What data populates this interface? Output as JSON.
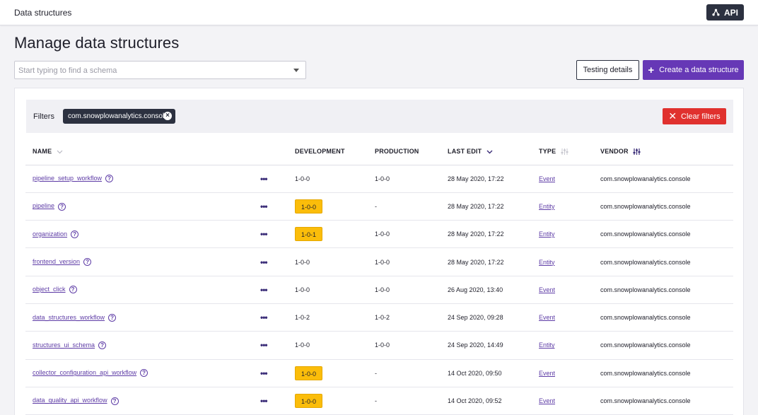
{
  "topbar": {
    "title": "Data structures",
    "api_label": "API"
  },
  "page": {
    "title": "Manage data structures",
    "search_placeholder": "Start typing to find a schema",
    "testing_label": "Testing details",
    "create_label": "Create a data structure"
  },
  "filters": {
    "label": "Filters",
    "chip": "com.snowplowanalytics.console",
    "clear_label": "Clear filters"
  },
  "table": {
    "headers": {
      "name": "NAME",
      "development": "DEVELOPMENT",
      "production": "PRODUCTION",
      "last_edit": "LAST EDIT",
      "type": "TYPE",
      "vendor": "VENDOR"
    },
    "rows": [
      {
        "name": "pipeline_setup_workflow",
        "dev": "1-0-0",
        "dev_badge": false,
        "prod": "1-0-0",
        "edit": "28 May 2020, 17:22",
        "type": "Event",
        "vendor": "com.snowplowanalytics.console"
      },
      {
        "name": "pipeline",
        "dev": "1-0-0",
        "dev_badge": true,
        "prod": "-",
        "edit": "28 May 2020, 17:22",
        "type": "Entity",
        "vendor": "com.snowplowanalytics.console"
      },
      {
        "name": "organization",
        "dev": "1-0-1",
        "dev_badge": true,
        "prod": "1-0-0",
        "edit": "28 May 2020, 17:22",
        "type": "Entity",
        "vendor": "com.snowplowanalytics.console"
      },
      {
        "name": "frontend_version",
        "dev": "1-0-0",
        "dev_badge": false,
        "prod": "1-0-0",
        "edit": "28 May 2020, 17:22",
        "type": "Entity",
        "vendor": "com.snowplowanalytics.console"
      },
      {
        "name": "object_click",
        "dev": "1-0-0",
        "dev_badge": false,
        "prod": "1-0-0",
        "edit": "26 Aug 2020, 13:40",
        "type": "Event",
        "vendor": "com.snowplowanalytics.console"
      },
      {
        "name": "data_structures_workflow",
        "dev": "1-0-2",
        "dev_badge": false,
        "prod": "1-0-2",
        "edit": "24 Sep 2020, 09:28",
        "type": "Event",
        "vendor": "com.snowplowanalytics.console"
      },
      {
        "name": "structures_ui_schema",
        "dev": "1-0-0",
        "dev_badge": false,
        "prod": "1-0-0",
        "edit": "24 Sep 2020, 14:49",
        "type": "Entity",
        "vendor": "com.snowplowanalytics.console"
      },
      {
        "name": "collector_configuration_api_workflow",
        "dev": "1-0-0",
        "dev_badge": true,
        "prod": "-",
        "edit": "14 Oct 2020, 09:50",
        "type": "Event",
        "vendor": "com.snowplowanalytics.console"
      },
      {
        "name": "data_quality_api_workflow",
        "dev": "1-0-0",
        "dev_badge": true,
        "prod": "-",
        "edit": "14 Oct 2020, 09:52",
        "type": "Event",
        "vendor": "com.snowplowanalytics.console"
      }
    ]
  },
  "colors": {
    "primary": "#6638b6",
    "dark": "#2c3140",
    "danger": "#e0312e",
    "badge": "#fbbd0a",
    "link": "#5e3ca6"
  }
}
